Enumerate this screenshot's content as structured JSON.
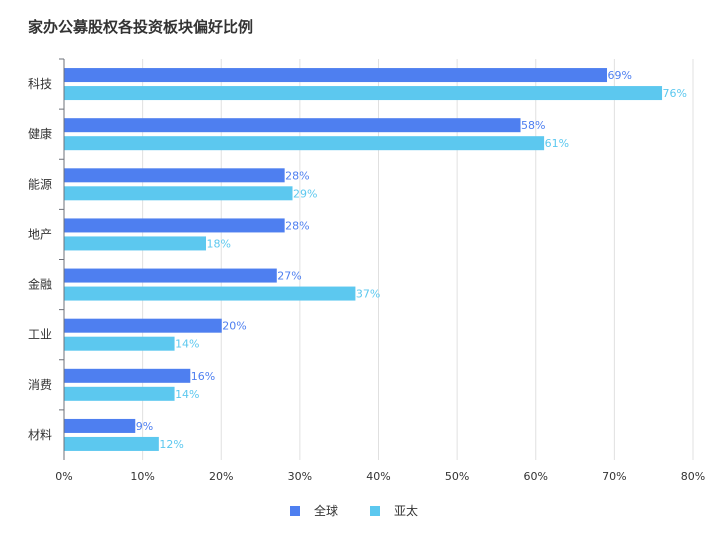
{
  "title": "家办公募股权各投资板块偏好比例",
  "colors": {
    "global": "#4e7ff0",
    "apac": "#5cc8ef"
  },
  "chart_data": {
    "type": "bar",
    "orientation": "horizontal",
    "title": "家办公募股权各投资板块偏好比例",
    "categories": [
      "科技",
      "健康",
      "能源",
      "地产",
      "金融",
      "工业",
      "消费",
      "材料"
    ],
    "series": [
      {
        "name": "全球",
        "values": [
          69,
          58,
          28,
          28,
          27,
          20,
          16,
          9
        ]
      },
      {
        "name": "亚太",
        "values": [
          76,
          61,
          29,
          18,
          37,
          14,
          14,
          12
        ]
      }
    ],
    "value_suffix": "%",
    "xlim": [
      0,
      80
    ],
    "x_ticks": [
      0,
      10,
      20,
      30,
      40,
      50,
      60,
      70,
      80
    ],
    "x_tick_labels": [
      "0%",
      "10%",
      "20%",
      "30%",
      "40%",
      "50%",
      "60%",
      "70%",
      "80%"
    ],
    "grid": "vertical",
    "legend": "bottom-center"
  }
}
